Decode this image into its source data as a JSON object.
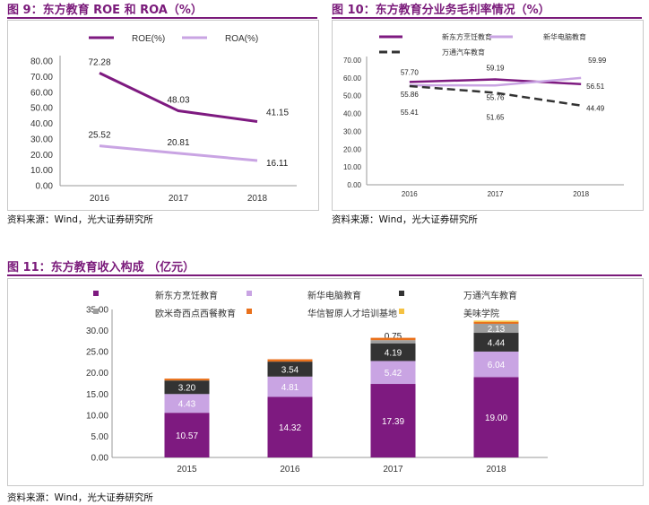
{
  "colors": {
    "title": "#7a1a7a",
    "roe": "#7e1a80",
    "roa": "#c9a4e3",
    "xdf": "#7e1a80",
    "xinhua": "#c9a4e3",
    "wantong": "#333333",
    "oumi": "#9e9e9e",
    "huaxin": "#e9711c",
    "meiwei": "#f5c242"
  },
  "figures": {
    "fig9": {
      "title": "图 9：东方教育 ROE 和 ROA（%）",
      "source": "资料来源：Wind，光大证券研究所"
    },
    "fig10": {
      "title": "图 10：东方教育分业务毛利率情况（%）",
      "source": "资料来源：Wind，光大证券研究所"
    },
    "fig11": {
      "title": "图 11：东方教育收入构成  （亿元）",
      "source": "资料来源：Wind，光大证券研究所"
    }
  },
  "chart_data": [
    {
      "id": "fig9",
      "type": "line",
      "title": "东方教育 ROE 和 ROA（%）",
      "categories": [
        "2016",
        "2017",
        "2018"
      ],
      "series": [
        {
          "name": "ROE(%)",
          "values": [
            72.28,
            48.03,
            41.15
          ],
          "labels": [
            "72.28",
            "48.03",
            "41.15"
          ]
        },
        {
          "name": "ROA(%)",
          "values": [
            25.52,
            20.81,
            16.11
          ],
          "labels": [
            "25.52",
            "20.81",
            "16.11"
          ]
        }
      ],
      "ylim": [
        0,
        80
      ],
      "yticks": [
        "0.00",
        "10.00",
        "20.00",
        "30.00",
        "40.00",
        "50.00",
        "60.00",
        "70.00",
        "80.00"
      ],
      "legend": "top"
    },
    {
      "id": "fig10",
      "type": "line",
      "title": "东方教育分业务毛利率情况（%）",
      "categories": [
        "2016",
        "2017",
        "2018"
      ],
      "series": [
        {
          "name": "新东方烹饪教育",
          "values": [
            57.7,
            59.19,
            56.51
          ],
          "labels": [
            "57.70",
            "59.19",
            "56.51"
          ]
        },
        {
          "name": "新华电脑教育",
          "values": [
            55.86,
            55.76,
            59.99
          ],
          "labels": [
            "55.86",
            "55.76",
            "59.99"
          ]
        },
        {
          "name": "万通汽车教育",
          "values": [
            55.41,
            51.65,
            44.49
          ],
          "labels": [
            "55.41",
            "51.65",
            "44.49"
          ]
        }
      ],
      "ylim": [
        0,
        70
      ],
      "yticks": [
        "0.00",
        "10.00",
        "20.00",
        "30.00",
        "40.00",
        "50.00",
        "60.00",
        "70.00"
      ],
      "legend": "top"
    },
    {
      "id": "fig11",
      "type": "bar",
      "stacked": true,
      "title": "东方教育收入构成（亿元）",
      "categories": [
        "2015",
        "2016",
        "2017",
        "2018"
      ],
      "series": [
        {
          "name": "新东方烹饪教育",
          "values": [
            10.57,
            14.32,
            17.39,
            19.0
          ],
          "labels": [
            "10.57",
            "14.32",
            "17.39",
            "19.00"
          ]
        },
        {
          "name": "新华电脑教育",
          "values": [
            4.43,
            4.81,
            5.42,
            6.04
          ],
          "labels": [
            "4.43",
            "4.81",
            "5.42",
            "6.04"
          ]
        },
        {
          "name": "万通汽车教育",
          "values": [
            3.2,
            3.54,
            4.19,
            4.44
          ],
          "labels": [
            "3.20",
            "3.54",
            "4.19",
            "4.44"
          ]
        },
        {
          "name": "欧米奇西点西餐教育",
          "values": [
            0,
            0,
            0.75,
            2.13
          ],
          "labels": [
            "",
            "",
            "0.75",
            "2.13"
          ]
        },
        {
          "name": "华信智原人才培训基地",
          "values": [
            0.45,
            0.55,
            0.55,
            0.45
          ],
          "labels": [
            "",
            "",
            "",
            ""
          ]
        },
        {
          "name": "美味学院",
          "values": [
            0,
            0,
            0,
            0.3
          ],
          "labels": [
            "",
            "",
            "",
            ""
          ]
        }
      ],
      "ylim": [
        0,
        35
      ],
      "yticks": [
        "0.00",
        "5.00",
        "10.00",
        "15.00",
        "20.00",
        "25.00",
        "30.00",
        "35.00"
      ],
      "legend": "top"
    }
  ]
}
